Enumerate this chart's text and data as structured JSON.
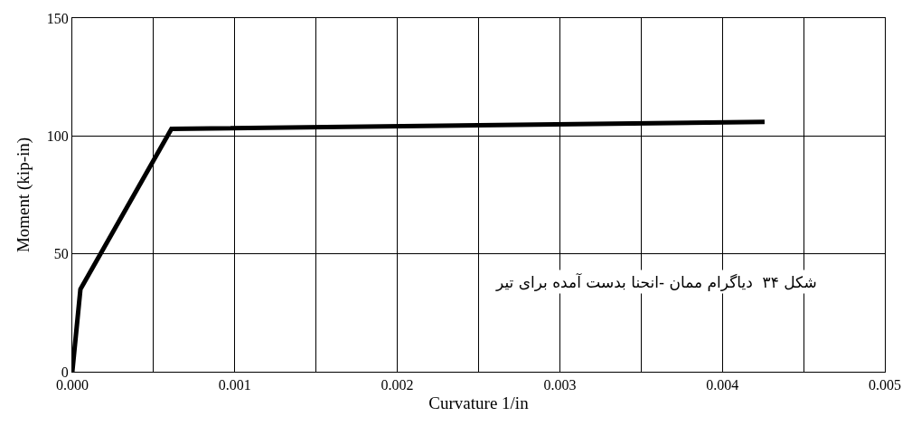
{
  "chart_data": {
    "type": "line",
    "xlabel": "Curvature 1/in",
    "ylabel": "Moment (kip-in)",
    "x": [
      0,
      5e-05,
      0.00061,
      0.00426
    ],
    "series": [
      {
        "color": "#000000",
        "values": [
          0,
          35,
          103,
          106
        ]
      }
    ],
    "xlim": [
      0,
      0.005
    ],
    "xticks": [
      {
        "value": 0,
        "label": "0.000"
      },
      {
        "value": 0.0005,
        "label": null
      },
      {
        "value": 0.001,
        "label": "0.001"
      },
      {
        "value": 0.0015,
        "label": null
      },
      {
        "value": 0.002,
        "label": "0.002"
      },
      {
        "value": 0.0025,
        "label": null
      },
      {
        "value": 0.003,
        "label": "0.003"
      },
      {
        "value": 0.0035,
        "label": null
      },
      {
        "value": 0.004,
        "label": "0.004"
      },
      {
        "value": 0.0045,
        "label": null
      },
      {
        "value": 0.005,
        "label": "0.005"
      }
    ],
    "ylim": [
      0,
      150
    ],
    "yticks": [
      0,
      50,
      100,
      150
    ],
    "grid": true,
    "legend": false,
    "marker": "none",
    "line_style": "solid",
    "annotations": [
      "شکل ۳۴  دیاگرام ممان -انحنا بدست آمده برای تیر"
    ]
  }
}
